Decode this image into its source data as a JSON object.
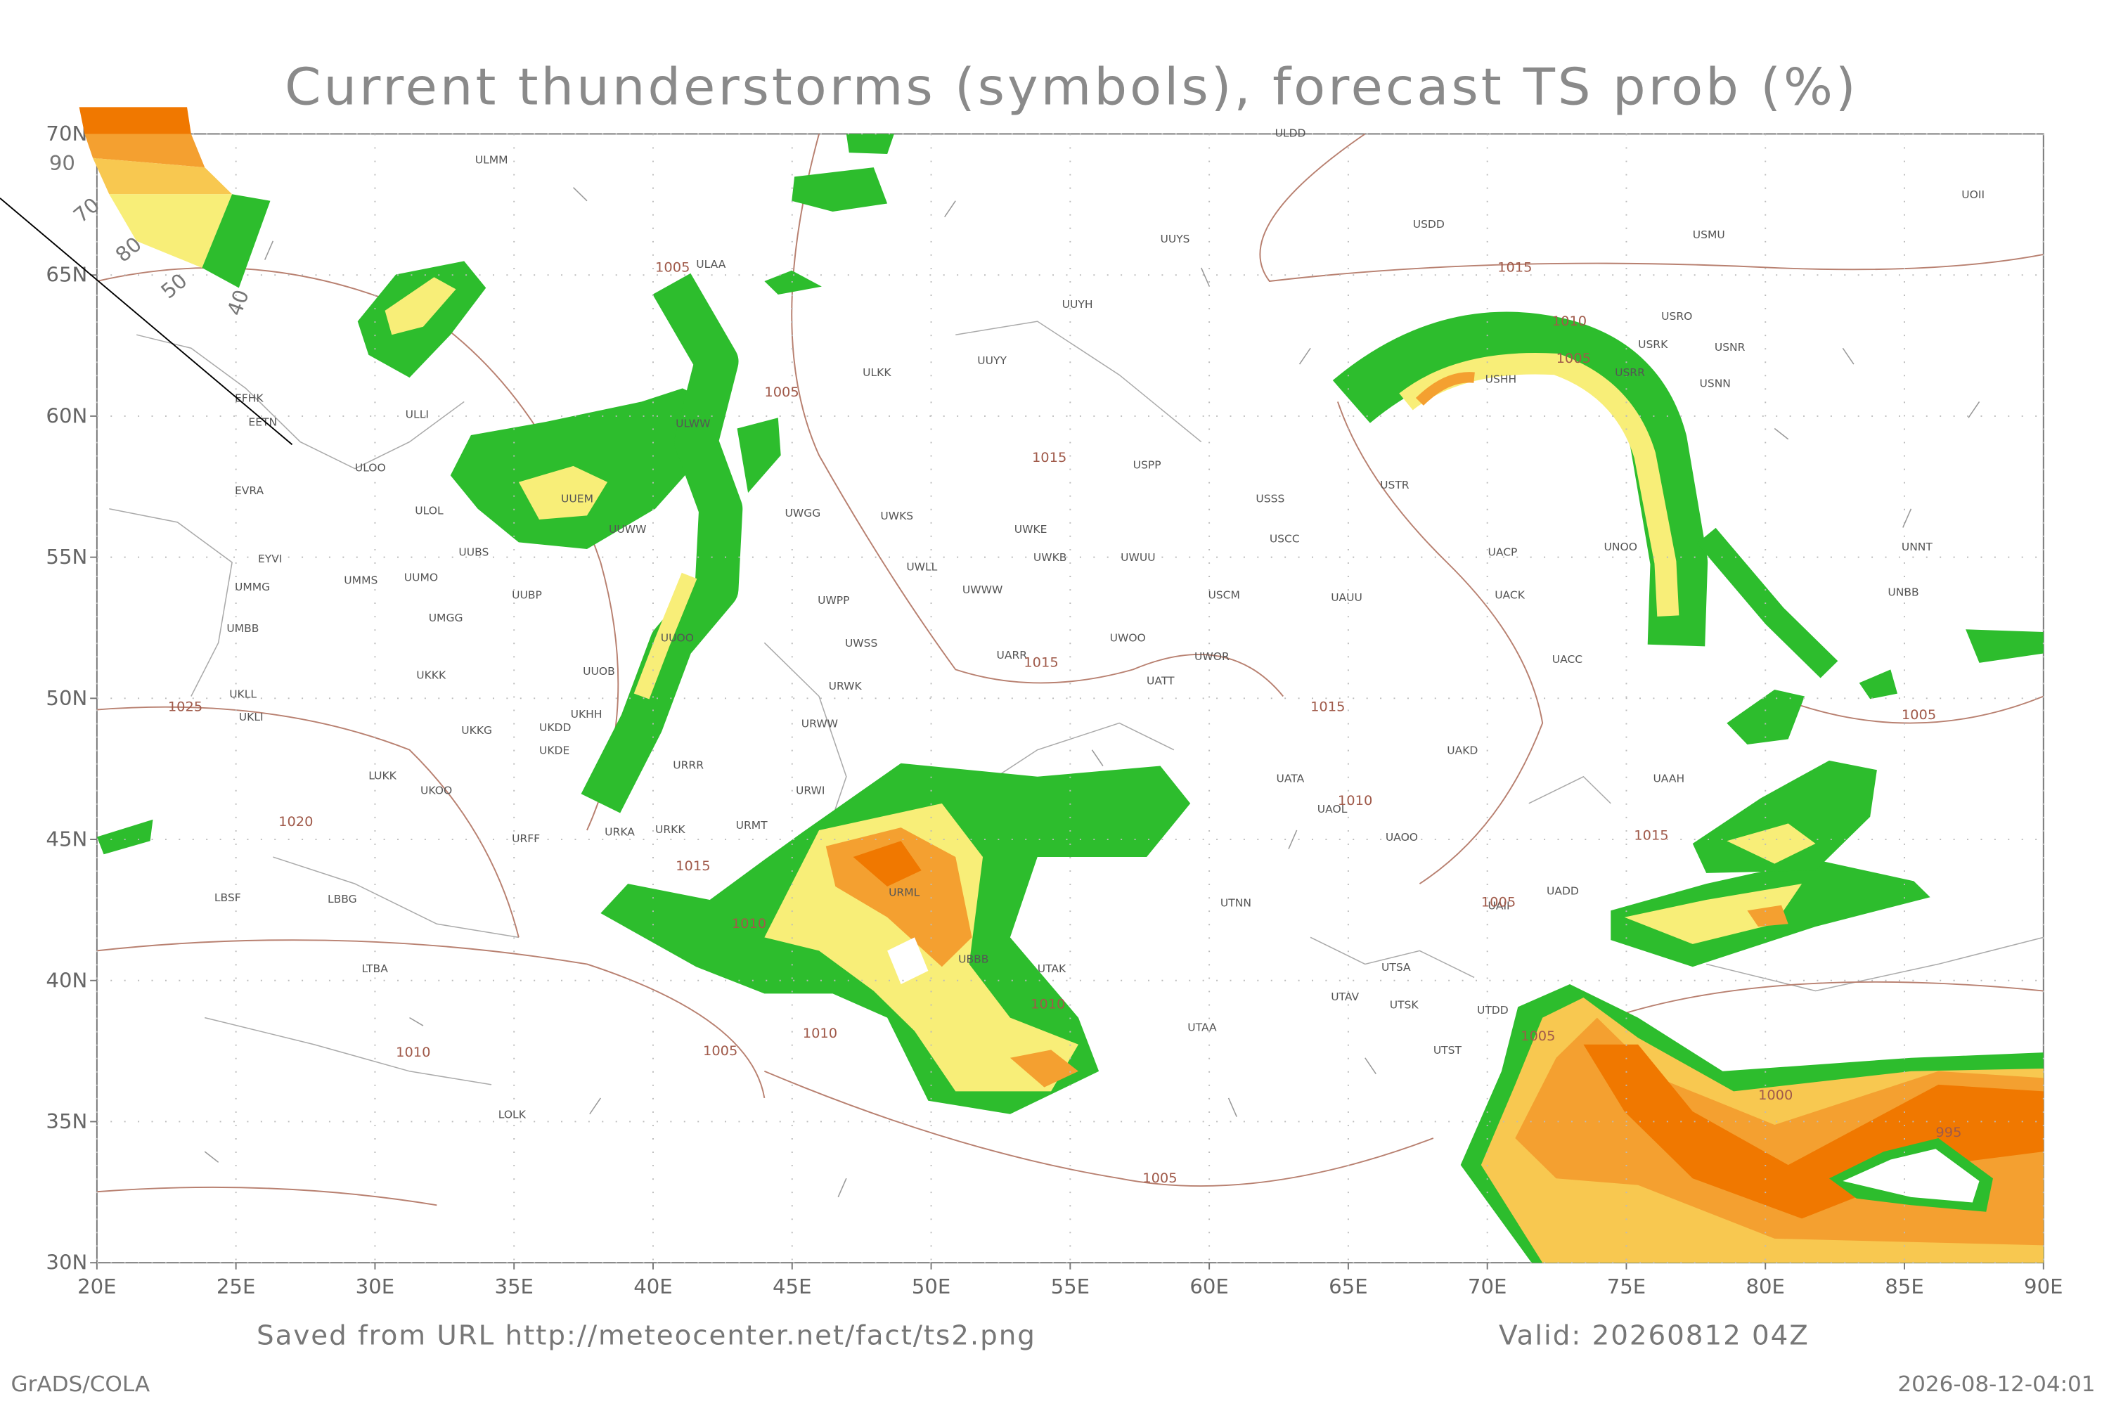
{
  "title": "Current thunderstorms (symbols), forecast TS prob (%)",
  "map": {
    "lat_ticks": [
      {
        "value": 70,
        "label": "70N"
      },
      {
        "value": 65,
        "label": "65N"
      },
      {
        "value": 60,
        "label": "60N"
      },
      {
        "value": 55,
        "label": "55N"
      },
      {
        "value": 50,
        "label": "50N"
      },
      {
        "value": 45,
        "label": "45N"
      },
      {
        "value": 40,
        "label": "40N"
      },
      {
        "value": 35,
        "label": "35N"
      },
      {
        "value": 30,
        "label": "30N"
      }
    ],
    "lon_ticks": [
      {
        "value": 20,
        "label": "20E"
      },
      {
        "value": 25,
        "label": "25E"
      },
      {
        "value": 30,
        "label": "30E"
      },
      {
        "value": 35,
        "label": "35E"
      },
      {
        "value": 40,
        "label": "40E"
      },
      {
        "value": 45,
        "label": "45E"
      },
      {
        "value": 50,
        "label": "50E"
      },
      {
        "value": 55,
        "label": "55E"
      },
      {
        "value": 60,
        "label": "60E"
      },
      {
        "value": 65,
        "label": "65E"
      },
      {
        "value": 70,
        "label": "70E"
      },
      {
        "value": 75,
        "label": "75E"
      },
      {
        "value": 80,
        "label": "80E"
      },
      {
        "value": 85,
        "label": "85E"
      },
      {
        "value": 90,
        "label": "90E"
      }
    ],
    "legend": {
      "levels": [
        "90",
        "70",
        "80",
        "50",
        "40"
      ]
    },
    "stations": [
      "ULMM",
      "ULDD",
      "UUYS",
      "USDD",
      "USMU",
      "UOII",
      "ULAA",
      "UUYH",
      "USRO",
      "USRK",
      "USNR",
      "UUYY",
      "ULKK",
      "USHH",
      "USRR",
      "USNN",
      "EFHK",
      "ULLI",
      "EETN",
      "ULWW",
      "ULOO",
      "USPP",
      "EVRA",
      "UUEM",
      "ULOL",
      "UWGG",
      "UWKS",
      "USSS",
      "USTR",
      "UUWW",
      "UWKE",
      "USCC",
      "UUBS",
      "UWKB",
      "UWUU",
      "UNOO",
      "UNNT",
      "UACP",
      "EYVI",
      "UMMS",
      "UUMO",
      "UWLL",
      "UWWW",
      "USCM",
      "UAUU",
      "UACK",
      "UNBB",
      "UMMG",
      "UUBP",
      "UWPP",
      "UMGG",
      "UMBB",
      "UUOO",
      "UWOO",
      "UWSS",
      "UARR",
      "UWOR",
      "UACC",
      "UUOB",
      "UKKK",
      "UATT",
      "UKHH",
      "URWK",
      "UKLL",
      "UKLI",
      "URWW",
      "UKDD",
      "UKKG",
      "UKDE",
      "UAKD",
      "URRR",
      "LUKK",
      "UKOO",
      "UATA",
      "URWI",
      "UAAH",
      "UAOL",
      "URKA",
      "URKK",
      "URMT",
      "URFF",
      "UAOO",
      "LBSF",
      "LBBG",
      "URML",
      "UADD",
      "UTNN",
      "UAII",
      "UBBB",
      "UTAK",
      "UTSA",
      "UTAV",
      "UTSK",
      "UTDD",
      "UTAA",
      "UTST",
      "LTBA",
      "LOLK"
    ],
    "isobars": [
      "1005",
      "1015",
      "1010",
      "1005",
      "1015",
      "1015",
      "1015",
      "1005",
      "1010",
      "1005",
      "1025",
      "1020",
      "1015",
      "1015",
      "1010",
      "1005",
      "1010",
      "1010",
      "1005",
      "1005",
      "1000",
      "995",
      "1010",
      "1005"
    ]
  },
  "footer": {
    "source": "Saved from URL http://meteocenter.net/fact/ts2.png",
    "valid": "Valid: 20260812 04Z",
    "software": "GrADS/COLA",
    "timestamp": "2026-08-12-04:01"
  }
}
